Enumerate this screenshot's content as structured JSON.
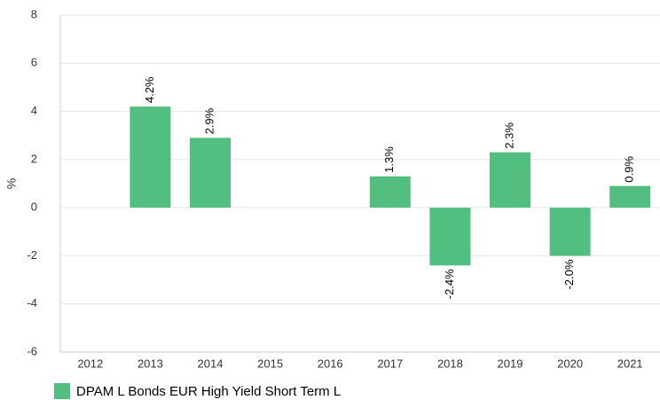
{
  "chart_data": {
    "type": "bar",
    "y_label": "%",
    "categories": [
      "2012",
      "2013",
      "2014",
      "2015",
      "2016",
      "2017",
      "2018",
      "2019",
      "2020",
      "2021"
    ],
    "series": [
      {
        "name": "DPAM L Bonds EUR High Yield Short Term L",
        "color": "#52be80",
        "values": [
          null,
          4.2,
          2.9,
          null,
          null,
          1.3,
          -2.4,
          2.3,
          -2.0,
          0.9
        ],
        "value_labels": [
          null,
          "4.2%",
          "2.9%",
          null,
          null,
          "1.3%",
          "-2.4%",
          "2.3%",
          "-2.0%",
          "0.9%"
        ]
      }
    ],
    "ylim": [
      -6,
      8
    ],
    "yticks": [
      -6,
      -4,
      -2,
      0,
      2,
      4,
      6,
      8
    ],
    "grid": true,
    "legend": "bottom-left"
  }
}
